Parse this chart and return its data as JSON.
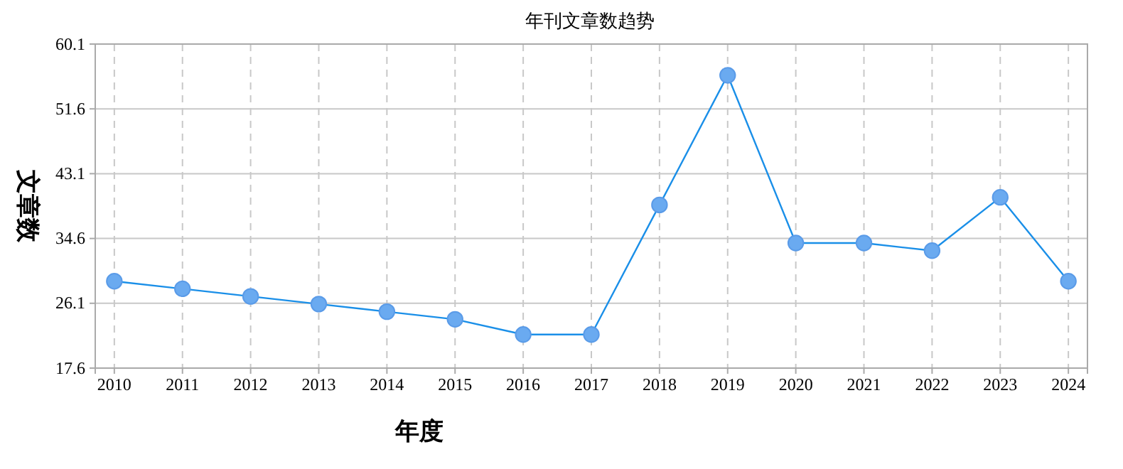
{
  "chart_data": {
    "type": "line",
    "title": "年刊文章数趋势",
    "xlabel": "年度",
    "ylabel": "文章数",
    "categories": [
      "2010",
      "2011",
      "2012",
      "2013",
      "2014",
      "2015",
      "2016",
      "2017",
      "2018",
      "2019",
      "2020",
      "2021",
      "2022",
      "2023",
      "2024"
    ],
    "series": [
      {
        "color": "#1a8fe8",
        "values": [
          29,
          28,
          27,
          26,
          25,
          24,
          22,
          22,
          39,
          56,
          34,
          34,
          33,
          40,
          29
        ]
      }
    ],
    "ylim": [
      17.6,
      60.1
    ],
    "yticks": [
      17.6,
      26.1,
      34.6,
      43.1,
      51.6,
      60.1
    ],
    "grid": true,
    "marker": "circle",
    "line_style": "solid"
  }
}
